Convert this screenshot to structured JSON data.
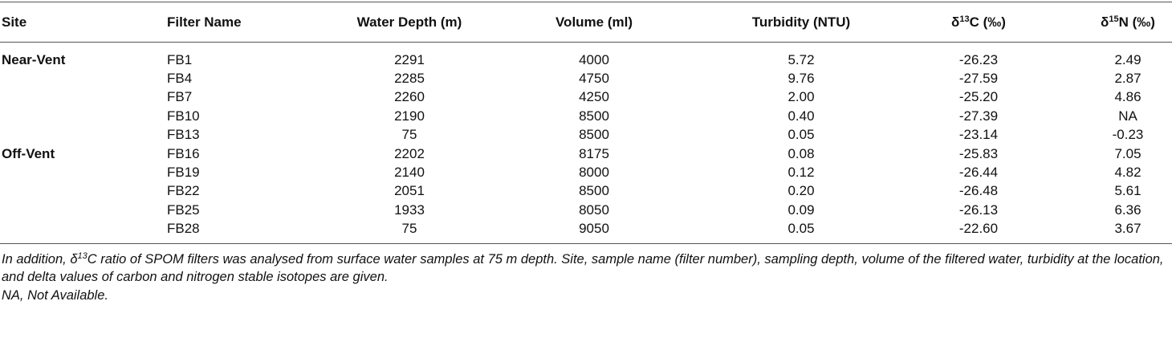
{
  "table": {
    "header": [
      "Site",
      "Filter Name",
      "Water Depth (m)",
      "Volume (ml)",
      "Turbidity (NTU)",
      {
        "pre": "δ",
        "sup": "13",
        "post": "C (‰)"
      },
      {
        "pre": "δ",
        "sup": "15",
        "post": "N (‰)"
      }
    ],
    "groups": [
      {
        "site": "Near-Vent",
        "rows": [
          [
            "FB1",
            "2291",
            "4000",
            "5.72",
            "-26.23",
            "2.49"
          ],
          [
            "FB4",
            "2285",
            "4750",
            "9.76",
            "-27.59",
            "2.87"
          ],
          [
            "FB7",
            "2260",
            "4250",
            "2.00",
            "-25.20",
            "4.86"
          ],
          [
            "FB10",
            "2190",
            "8500",
            "0.40",
            "-27.39",
            "NA"
          ],
          [
            "FB13",
            "75",
            "8500",
            "0.05",
            "-23.14",
            "-0.23"
          ]
        ]
      },
      {
        "site": "Off-Vent",
        "rows": [
          [
            "FB16",
            "2202",
            "8175",
            "0.08",
            "-25.83",
            "7.05"
          ],
          [
            "FB19",
            "2140",
            "8000",
            "0.12",
            "-26.44",
            "4.82"
          ],
          [
            "FB22",
            "2051",
            "8500",
            "0.20",
            "-26.48",
            "5.61"
          ],
          [
            "FB25",
            "1933",
            "8050",
            "0.09",
            "-26.13",
            "6.36"
          ],
          [
            "FB28",
            "75",
            "9050",
            "0.05",
            "-22.60",
            "3.67"
          ]
        ]
      }
    ]
  },
  "notes": [
    {
      "pre": "In addition, ",
      "delta": "δ",
      "sup": "13",
      "post": "C ratio of SPOM filters was analysed from surface water samples at 75 m depth. Site, sample name (filter number), sampling depth, volume of the filtered water, turbidity at the location, and delta values of carbon and nitrogen stable isotopes are given."
    },
    {
      "text": "NA, Not Available."
    }
  ]
}
